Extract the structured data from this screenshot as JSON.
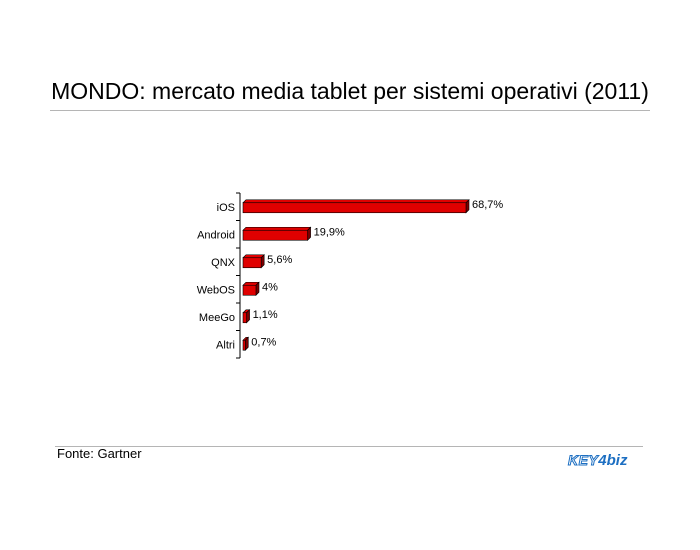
{
  "title": "MONDO: mercato media tablet per sistemi operativi (2011)",
  "source": "Fonte: Gartner",
  "logo": {
    "key": "KEY",
    "four": "4",
    "biz": "biz"
  },
  "colors": {
    "bar": "#e00000",
    "bar_dark": "#7a0000",
    "axis": "#000000",
    "rule": "#b5b5b5",
    "logo": "#1d6fc2"
  },
  "chart_data": {
    "type": "bar",
    "orientation": "horizontal",
    "categories": [
      "iOS",
      "Android",
      "QNX",
      "WebOS",
      "MeeGo",
      "Altri"
    ],
    "values": [
      68.7,
      19.9,
      5.6,
      4,
      1.1,
      0.7
    ],
    "value_labels": [
      "68,7%",
      "19,9%",
      "5,6%",
      "4%",
      "1,1%",
      "0,7%"
    ],
    "unit": "%",
    "title": "MONDO: mercato media tablet per sistemi operativi (2011)",
    "xlim": [
      0,
      68.7
    ],
    "bar_style": "3d",
    "grid": false
  }
}
